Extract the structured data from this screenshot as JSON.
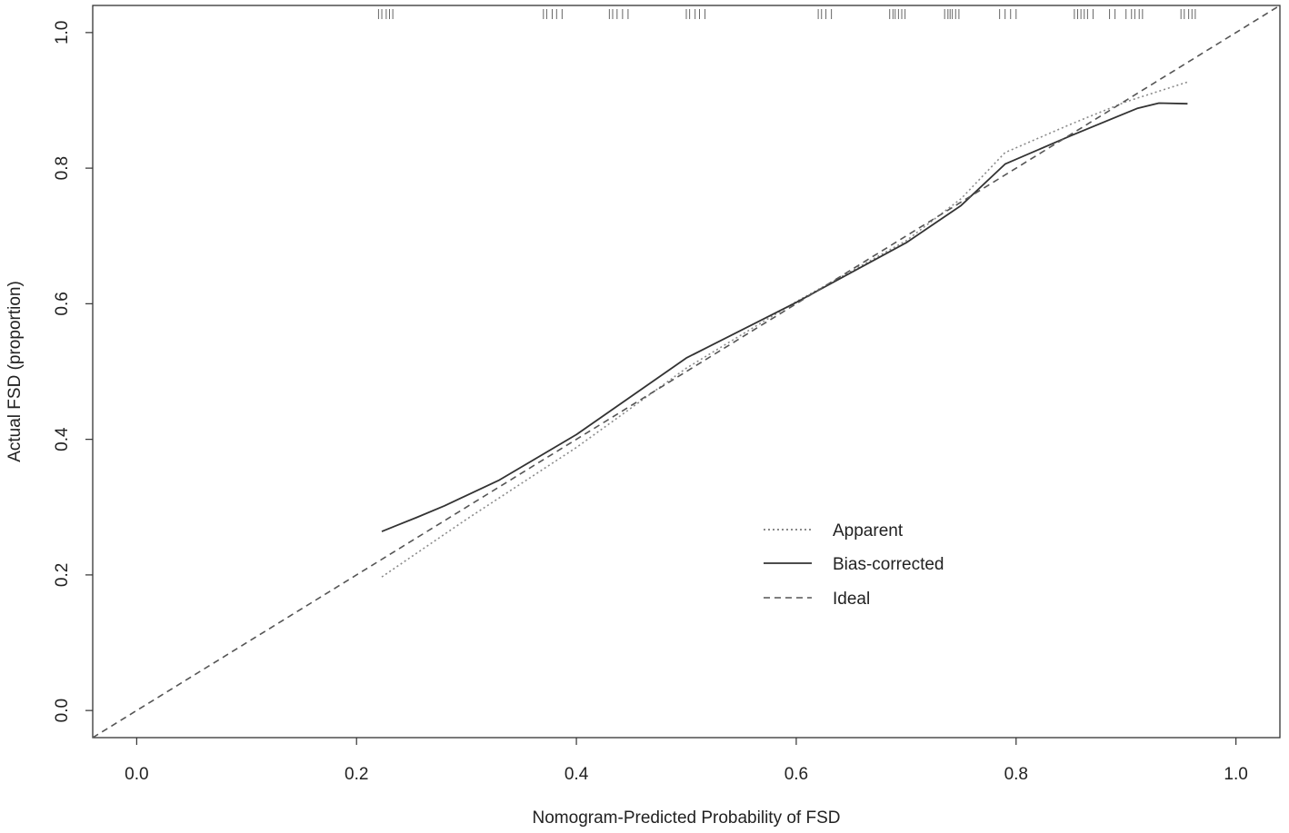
{
  "chart_data": {
    "type": "line",
    "title": "",
    "xlabel": "Nomogram-Predicted Probability of FSD",
    "ylabel": "Actual FSD (proportion)",
    "xlim": [
      -0.04,
      1.04
    ],
    "ylim": [
      -0.04,
      1.04
    ],
    "x_ticks": [
      0.0,
      0.2,
      0.4,
      0.6,
      0.8,
      1.0
    ],
    "x_tick_labels": [
      "0.0",
      "0.2",
      "0.4",
      "0.6",
      "0.8",
      "1.0"
    ],
    "y_ticks": [
      0.0,
      0.2,
      0.4,
      0.6,
      0.8,
      1.0
    ],
    "y_tick_labels": [
      "0.0",
      "0.2",
      "0.4",
      "0.6",
      "0.8",
      "1.0"
    ],
    "grid": false,
    "legend_position": "center-right",
    "series": [
      {
        "name": "Apparent",
        "style": "dotted",
        "color": "#8a8a8a",
        "points": [
          [
            0.223,
            0.197
          ],
          [
            0.3,
            0.282
          ],
          [
            0.4,
            0.388
          ],
          [
            0.5,
            0.505
          ],
          [
            0.6,
            0.603
          ],
          [
            0.7,
            0.693
          ],
          [
            0.75,
            0.755
          ],
          [
            0.79,
            0.823
          ],
          [
            0.85,
            0.865
          ],
          [
            0.9,
            0.898
          ],
          [
            0.956,
            0.927
          ]
        ]
      },
      {
        "name": "Bias-corrected",
        "style": "solid",
        "color": "#333333",
        "points": [
          [
            0.223,
            0.264
          ],
          [
            0.235,
            0.272
          ],
          [
            0.255,
            0.285
          ],
          [
            0.28,
            0.302
          ],
          [
            0.33,
            0.34
          ],
          [
            0.4,
            0.407
          ],
          [
            0.5,
            0.52
          ],
          [
            0.6,
            0.602
          ],
          [
            0.7,
            0.69
          ],
          [
            0.75,
            0.745
          ],
          [
            0.79,
            0.806
          ],
          [
            0.85,
            0.848
          ],
          [
            0.91,
            0.888
          ],
          [
            0.93,
            0.896
          ],
          [
            0.956,
            0.895
          ]
        ]
      },
      {
        "name": "Ideal",
        "style": "dashed",
        "color": "#555555",
        "points": [
          [
            -0.04,
            -0.04
          ],
          [
            1.04,
            1.04
          ]
        ]
      }
    ],
    "rug_x": [
      0.22,
      0.223,
      0.227,
      0.23,
      0.233,
      0.37,
      0.373,
      0.378,
      0.382,
      0.387,
      0.43,
      0.433,
      0.437,
      0.442,
      0.447,
      0.5,
      0.503,
      0.508,
      0.512,
      0.517,
      0.62,
      0.623,
      0.627,
      0.632,
      0.685,
      0.688,
      0.69,
      0.693,
      0.696,
      0.699,
      0.735,
      0.738,
      0.74,
      0.742,
      0.745,
      0.748,
      0.785,
      0.79,
      0.795,
      0.8,
      0.853,
      0.856,
      0.859,
      0.862,
      0.865,
      0.87,
      0.885,
      0.89,
      0.9,
      0.905,
      0.908,
      0.912,
      0.915,
      0.95,
      0.953,
      0.957,
      0.96,
      0.963
    ]
  }
}
